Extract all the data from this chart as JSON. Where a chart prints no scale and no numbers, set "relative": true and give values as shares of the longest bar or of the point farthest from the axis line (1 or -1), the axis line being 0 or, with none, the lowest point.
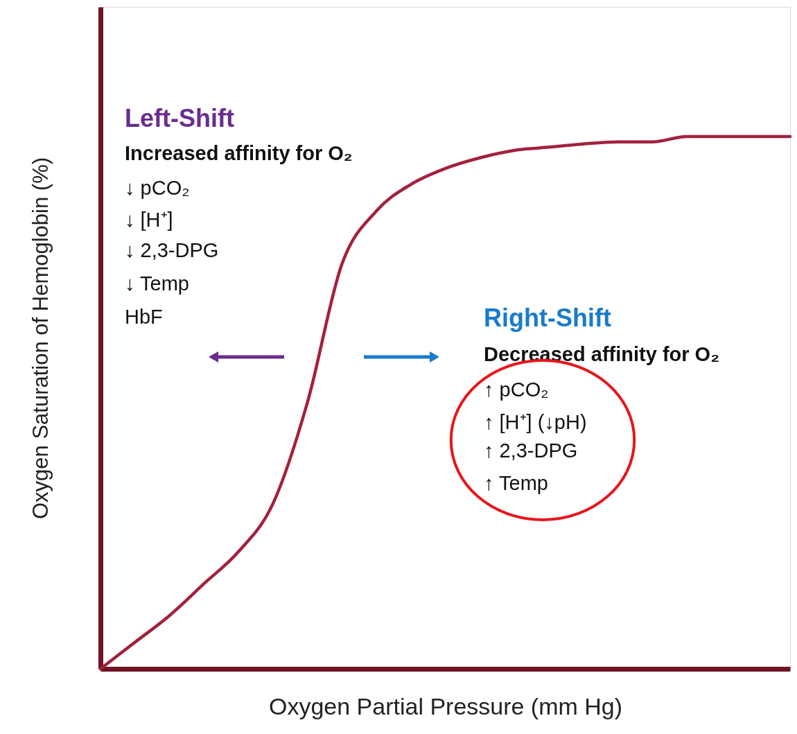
{
  "chart_data": {
    "type": "line",
    "relative": true,
    "tick_labels": false,
    "grid": false,
    "marker": "none",
    "line_style": "solid",
    "xlabel": "Oxygen Partial Pressure (mm Hg)",
    "ylabel": "Oxygen Saturation of Hemoglobin (%)",
    "categories": [
      null,
      null,
      null,
      null,
      null,
      null,
      null,
      null,
      null,
      null,
      null,
      null,
      null,
      null,
      null,
      null,
      null,
      null,
      null,
      null,
      null
    ],
    "series": [
      {
        "color": "#a3213d",
        "values": [
          0,
          0.05,
          0.1,
          0.16,
          0.22,
          0.31,
          0.5,
          0.76,
          0.86,
          0.91,
          0.94,
          0.96,
          0.974,
          0.98,
          0.986,
          0.99,
          0.99,
          1.0,
          1.0,
          1.0,
          1.0
        ]
      }
    ],
    "annotations": [
      "Left-Shift",
      "Increased affinity  for O₂",
      "↓ pCO₂",
      "↓ [H⁺]",
      "↓ 2,3-DPG",
      "↓ Temp",
      "HbF",
      "Right-Shift",
      "Decreased affinity  for O₂",
      "↑ pCO₂",
      "↑ [H⁺] (↓pH)",
      "↑ 2,3-DPG",
      "↑ Temp"
    ]
  }
}
